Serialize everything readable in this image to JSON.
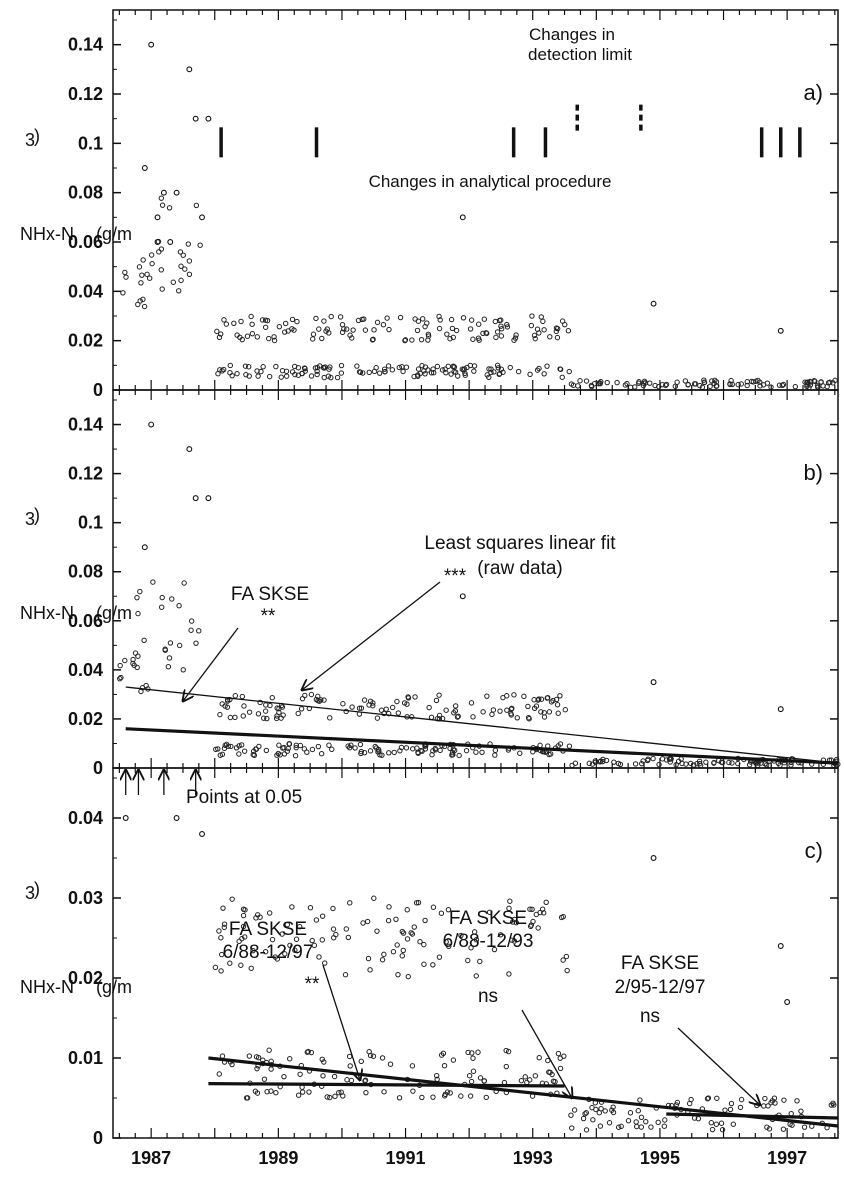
{
  "chart_data": [
    {
      "panel": "a)",
      "type": "scatter",
      "ylabel": "NHx-N (g/m³)",
      "ylim": [
        0,
        0.15
      ],
      "yticks": [
        "0",
        "0.02",
        "0.04",
        "0.06",
        "0.08",
        "0.1",
        "0.12",
        "0.14"
      ],
      "xlim": [
        1986.4,
        1997.8
      ],
      "xticks": [],
      "annotations": {
        "detection": [
          "Changes in",
          "detection limit"
        ],
        "procedure": "Changes in analytical procedure"
      },
      "procedure_markers_x": [
        1988.1,
        1989.6,
        1992.7,
        1993.2,
        1996.6,
        1996.9,
        1997.2
      ],
      "detection_markers_x": [
        1993.7,
        1994.7
      ],
      "scatter_clusters": [
        {
          "x": [
            1986.5,
            1987.0
          ],
          "y": [
            0.03,
            0.05
          ]
        },
        {
          "x": [
            1986.7,
            1987.8
          ],
          "y": [
            0.04,
            0.08
          ]
        },
        {
          "x": [
            1988.0,
            1993.6
          ],
          "y": [
            0.005,
            0.01
          ]
        },
        {
          "x": [
            1988.0,
            1993.6
          ],
          "y": [
            0.02,
            0.03
          ]
        },
        {
          "x": [
            1993.6,
            1997.8
          ],
          "y": [
            0.001,
            0.004
          ]
        }
      ],
      "points": [
        {
          "x": 1987.0,
          "y": 0.14
        },
        {
          "x": 1987.6,
          "y": 0.13
        },
        {
          "x": 1987.7,
          "y": 0.11
        },
        {
          "x": 1987.9,
          "y": 0.11
        },
        {
          "x": 1986.9,
          "y": 0.09
        },
        {
          "x": 1987.2,
          "y": 0.08
        },
        {
          "x": 1987.4,
          "y": 0.08
        },
        {
          "x": 1987.1,
          "y": 0.07
        },
        {
          "x": 1987.8,
          "y": 0.07
        },
        {
          "x": 1987.1,
          "y": 0.06
        },
        {
          "x": 1987.3,
          "y": 0.06
        },
        {
          "x": 1991.9,
          "y": 0.07
        },
        {
          "x": 1994.9,
          "y": 0.035
        },
        {
          "x": 1996.9,
          "y": 0.024
        }
      ]
    },
    {
      "panel": "b)",
      "type": "scatter",
      "ylabel": "NHx-N (g/m³)",
      "ylim": [
        0,
        0.15
      ],
      "yticks": [
        "0",
        "0.02",
        "0.04",
        "0.06",
        "0.08",
        "0.1",
        "0.12",
        "0.14"
      ],
      "xlim": [
        1986.4,
        1997.8
      ],
      "xticks": [],
      "annotations": {
        "fit_label": [
          "Least squares linear fit",
          "(raw data)"
        ],
        "fa_label": "FA SKSE",
        "fa_sig": "**",
        "outlier_sig": "***"
      },
      "fit_lines": [
        {
          "x": [
            1986.6,
            1997.8
          ],
          "y": [
            0.033,
            0.002
          ]
        },
        {
          "x": [
            1986.6,
            1997.8
          ],
          "y": [
            0.016,
            0.002
          ]
        }
      ],
      "points": [
        {
          "x": 1987.0,
          "y": 0.14
        },
        {
          "x": 1987.6,
          "y": 0.13
        },
        {
          "x": 1987.7,
          "y": 0.11
        },
        {
          "x": 1987.9,
          "y": 0.11
        },
        {
          "x": 1986.9,
          "y": 0.09
        },
        {
          "x": 1991.9,
          "y": 0.07
        },
        {
          "x": 1994.9,
          "y": 0.035
        },
        {
          "x": 1996.9,
          "y": 0.024
        }
      ]
    },
    {
      "panel": "c)",
      "type": "scatter",
      "ylabel": "NHx-N (g/m³)",
      "ylim": [
        0,
        0.045
      ],
      "yticks": [
        "0",
        "0.01",
        "0.02",
        "0.03",
        "0.04"
      ],
      "xlim": [
        1986.4,
        1997.8
      ],
      "xticks": [
        "1987",
        "1989",
        "1991",
        "1993",
        "1995",
        "1997"
      ],
      "annotations": {
        "points_note": "Points at 0.05",
        "fa1": [
          "FA SKSE",
          "6/88-12/97",
          "**"
        ],
        "fa2": [
          "FA SKSE",
          "6/88-12/93",
          "ns"
        ],
        "fa3": [
          "FA SKSE",
          "2/95-12/97",
          "ns"
        ]
      },
      "note_arrows_x": [
        1986.6,
        1986.8,
        1987.2,
        1987.7
      ],
      "fit_lines": [
        {
          "x": [
            1987.9,
            1997.8
          ],
          "y": [
            0.01,
            0.0015
          ]
        },
        {
          "x": [
            1987.9,
            1993.5
          ],
          "y": [
            0.0068,
            0.0065
          ]
        },
        {
          "x": [
            1995.1,
            1997.8
          ],
          "y": [
            0.003,
            0.0025
          ]
        }
      ],
      "points": [
        {
          "x": 1986.6,
          "y": 0.04
        },
        {
          "x": 1987.4,
          "y": 0.04
        },
        {
          "x": 1987.8,
          "y": 0.038
        },
        {
          "x": 1994.9,
          "y": 0.035
        },
        {
          "x": 1996.9,
          "y": 0.024
        },
        {
          "x": 1997.0,
          "y": 0.017
        }
      ]
    }
  ]
}
